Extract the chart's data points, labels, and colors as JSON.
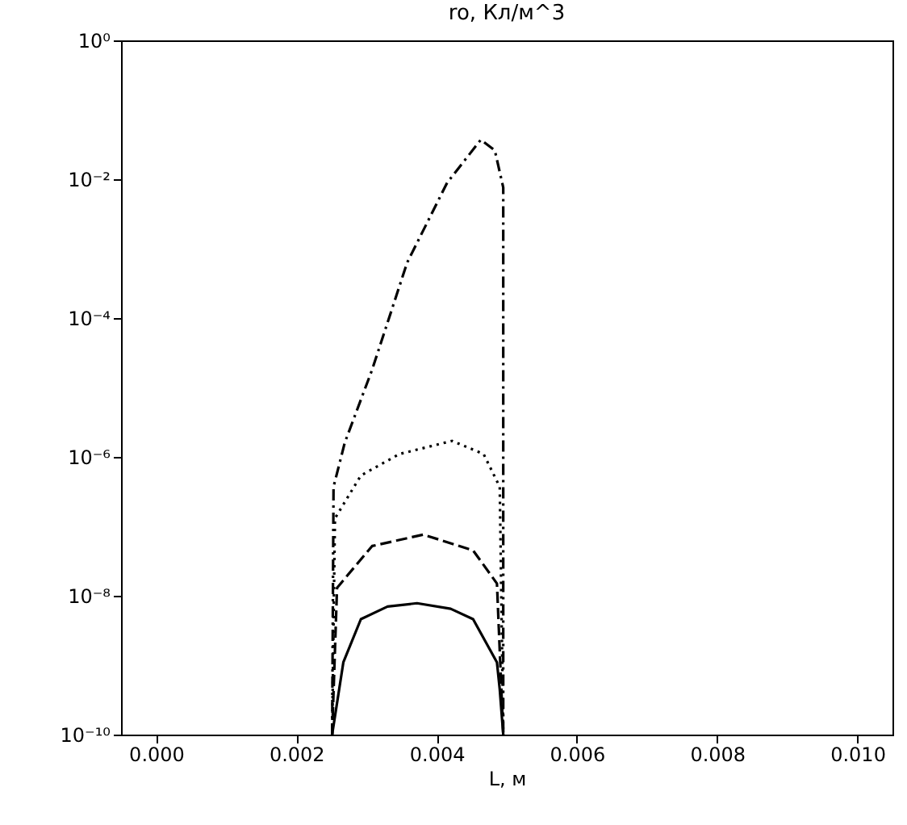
{
  "chart_data": {
    "type": "line",
    "title": "ro, Кл/м^3",
    "xlabel": "L, м",
    "log": true,
    "grid": false,
    "marker": "none",
    "xlim": [
      -0.0005,
      0.0105
    ],
    "xticks": [
      {
        "value": 0,
        "label": "0.000"
      },
      {
        "value": 0.002,
        "label": "0.002"
      },
      {
        "value": 0.004,
        "label": "0.004"
      },
      {
        "value": 0.006,
        "label": "0.006"
      },
      {
        "value": 0.008,
        "label": "0.008"
      },
      {
        "value": 0.01,
        "label": "0.010"
      }
    ],
    "ylim": [
      1e-10,
      1
    ],
    "yticks": [
      {
        "value": 1,
        "label": "10⁰"
      },
      {
        "value": 0.01,
        "label": "10⁻²"
      },
      {
        "value": 0.0001,
        "label": "10⁻⁴"
      },
      {
        "value": 1e-06,
        "label": "10⁻⁶"
      },
      {
        "value": 1e-08,
        "label": "10⁻⁸"
      },
      {
        "value": 1e-10,
        "label": "10⁻¹⁰"
      }
    ],
    "series": [
      {
        "color": "#000000",
        "line_style": "solid",
        "x": [
          0.00251,
          0.00267,
          0.00292,
          0.0033,
          0.00372,
          0.0042,
          0.00452,
          0.00486,
          0.0049,
          0.00495
        ],
        "values": [
          1e-10,
          1.1e-09,
          4.6e-09,
          7e-09,
          7.8e-09,
          6.5e-09,
          4.6e-09,
          1.1e-09,
          4.5e-10,
          1e-10
        ]
      },
      {
        "color": "#000000",
        "line_style": "dashed",
        "x": [
          0.00251,
          0.00258,
          0.00308,
          0.00381,
          0.00452,
          0.00486,
          0.00495
        ],
        "values": [
          1e-10,
          1.3e-08,
          5.2e-08,
          7.6e-08,
          4.5e-08,
          1.5e-08,
          1e-10
        ]
      },
      {
        "color": "#000000",
        "line_style": "dotted",
        "x": [
          0.00251,
          0.00255,
          0.00292,
          0.00347,
          0.00422,
          0.00467,
          0.0049,
          0.00495
        ],
        "values": [
          1e-10,
          1.3e-07,
          5.4e-07,
          1.1e-06,
          1.7e-06,
          1.1e-06,
          3.7e-07,
          1e-10
        ]
      },
      {
        "color": "#000000",
        "line_style": "dashdot",
        "x": [
          0.00251,
          0.00253,
          0.00269,
          0.00308,
          0.00358,
          0.00415,
          0.00463,
          0.00483,
          0.00495,
          0.00495
        ],
        "values": [
          1e-10,
          3.7e-07,
          1.6e-06,
          1.8e-05,
          0.00063,
          0.0089,
          0.037,
          0.026,
          0.0076,
          1e-10
        ]
      }
    ]
  }
}
